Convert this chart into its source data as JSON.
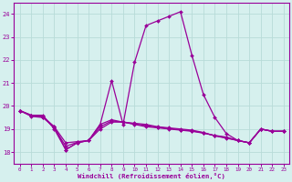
{
  "xlabel": "Windchill (Refroidissement éolien,°C)",
  "xlim": [
    -0.5,
    23.5
  ],
  "ylim": [
    17.5,
    24.5
  ],
  "yticks": [
    18,
    19,
    20,
    21,
    22,
    23,
    24
  ],
  "xticks": [
    0,
    1,
    2,
    3,
    4,
    5,
    6,
    7,
    8,
    9,
    10,
    11,
    12,
    13,
    14,
    15,
    16,
    17,
    18,
    19,
    20,
    21,
    22,
    23
  ],
  "background_color": "#d6f0ee",
  "line_color": "#990099",
  "grid_color": "#b8dbd8",
  "curve1_y": [
    19.8,
    19.6,
    19.6,
    19.0,
    18.1,
    18.4,
    18.5,
    19.2,
    21.1,
    19.2,
    21.9,
    23.5,
    23.7,
    23.9,
    24.1,
    22.2,
    20.5,
    19.5,
    18.8,
    18.5,
    18.4,
    19.0,
    18.9,
    18.9
  ],
  "curve2_y": [
    19.8,
    19.6,
    19.55,
    19.1,
    18.1,
    18.4,
    18.5,
    19.2,
    19.4,
    19.3,
    19.25,
    19.2,
    19.1,
    19.05,
    19.0,
    18.95,
    18.85,
    18.7,
    18.6,
    18.5,
    18.4,
    19.0,
    18.9,
    18.9
  ],
  "curve3_y": [
    19.8,
    19.55,
    19.5,
    19.1,
    18.4,
    18.45,
    18.5,
    19.0,
    19.3,
    19.3,
    19.2,
    19.1,
    19.05,
    19.0,
    18.95,
    18.9,
    18.82,
    18.72,
    18.65,
    18.5,
    18.4,
    19.0,
    18.9,
    18.9
  ],
  "curve4_y": [
    19.8,
    19.58,
    19.52,
    19.05,
    18.25,
    18.42,
    18.5,
    19.1,
    19.35,
    19.3,
    19.22,
    19.15,
    19.08,
    19.02,
    18.97,
    18.92,
    18.83,
    18.71,
    18.62,
    18.5,
    18.4,
    19.0,
    18.9,
    18.9
  ]
}
